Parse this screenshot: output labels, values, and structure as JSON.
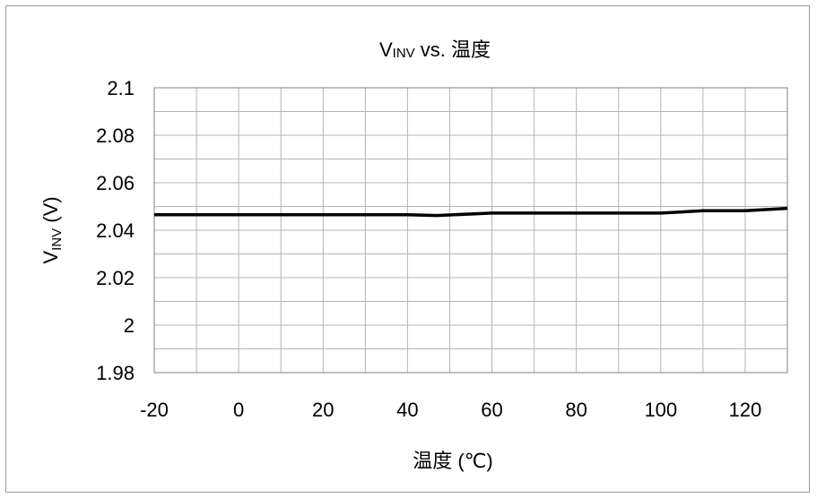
{
  "chart_data": {
    "type": "line",
    "title_main": "V",
    "title_sub": "INV",
    "title_rest": " vs.  温度",
    "ylabel_main": "V",
    "ylabel_sub": "INV",
    "ylabel_rest": " (V)",
    "xlabel": "温度 (℃)",
    "xlim": [
      -20,
      130
    ],
    "ylim": [
      1.98,
      2.1
    ],
    "x_ticks": [
      -20,
      0,
      20,
      40,
      60,
      80,
      100,
      120
    ],
    "x_tick_labels": [
      "-20",
      "0",
      "20",
      "40",
      "60",
      "80",
      "100",
      "120"
    ],
    "x_minor_step": 10,
    "y_ticks": [
      1.98,
      2.0,
      2.02,
      2.04,
      2.06,
      2.08,
      2.1
    ],
    "y_tick_labels": [
      "1.98",
      "2",
      "2.02",
      "2.04",
      "2.06",
      "2.08",
      "2.1"
    ],
    "y_minor_step": 0.01,
    "grid": true,
    "legend": "none",
    "series": [
      {
        "x": [
          -20,
          -10,
          0,
          10,
          20,
          30,
          40,
          47,
          60,
          70,
          80,
          90,
          100,
          110,
          120,
          130
        ],
        "values": [
          2.0465,
          2.0465,
          2.0465,
          2.0465,
          2.0465,
          2.0465,
          2.0465,
          2.0462,
          2.0472,
          2.0472,
          2.0472,
          2.0472,
          2.0472,
          2.0482,
          2.0482,
          2.0492
        ]
      }
    ],
    "colors": {
      "line": "#000000",
      "grid": "#b4b4b4",
      "axis": "#808080"
    }
  }
}
